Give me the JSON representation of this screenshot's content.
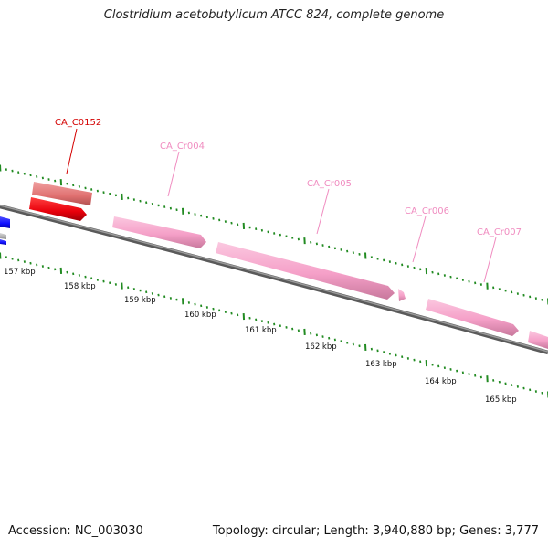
{
  "header": {
    "title": "Clostridium acetobutylicum ATCC 824, complete genome"
  },
  "footer": {
    "accession": "Accession: NC_003030",
    "summary": "Topology: circular; Length: 3,940,880 bp; Genes: 3,777"
  },
  "colors": {
    "backbone": "#808080",
    "tick": "#228b22",
    "gene_red": "#e8000b",
    "gene_light_red": "#e07070",
    "gene_pink": "#f5a0c8",
    "gene_blue": "#1010ff",
    "label_red": "#d40000",
    "label_pink": "#f08cc0"
  },
  "axis": {
    "ticks": [
      {
        "label": "157 kbp"
      },
      {
        "label": "158 kbp"
      },
      {
        "label": "159 kbp"
      },
      {
        "label": "160 kbp"
      },
      {
        "label": "161 kbp"
      },
      {
        "label": "162 kbp"
      },
      {
        "label": "163 kbp"
      },
      {
        "label": "164 kbp"
      },
      {
        "label": "165 kbp"
      }
    ]
  },
  "genes": [
    {
      "label": "CA_C0152",
      "color_key": "gene_red",
      "label_color_key": "label_red"
    },
    {
      "label": "CA_Cr004",
      "color_key": "gene_pink",
      "label_color_key": "label_pink"
    },
    {
      "label": "CA_Cr005",
      "color_key": "gene_pink",
      "label_color_key": "label_pink"
    },
    {
      "label": "CA_Cr006",
      "color_key": "gene_pink",
      "label_color_key": "label_pink"
    },
    {
      "label": "CA_Cr007",
      "color_key": "gene_pink",
      "label_color_key": "label_pink"
    }
  ]
}
